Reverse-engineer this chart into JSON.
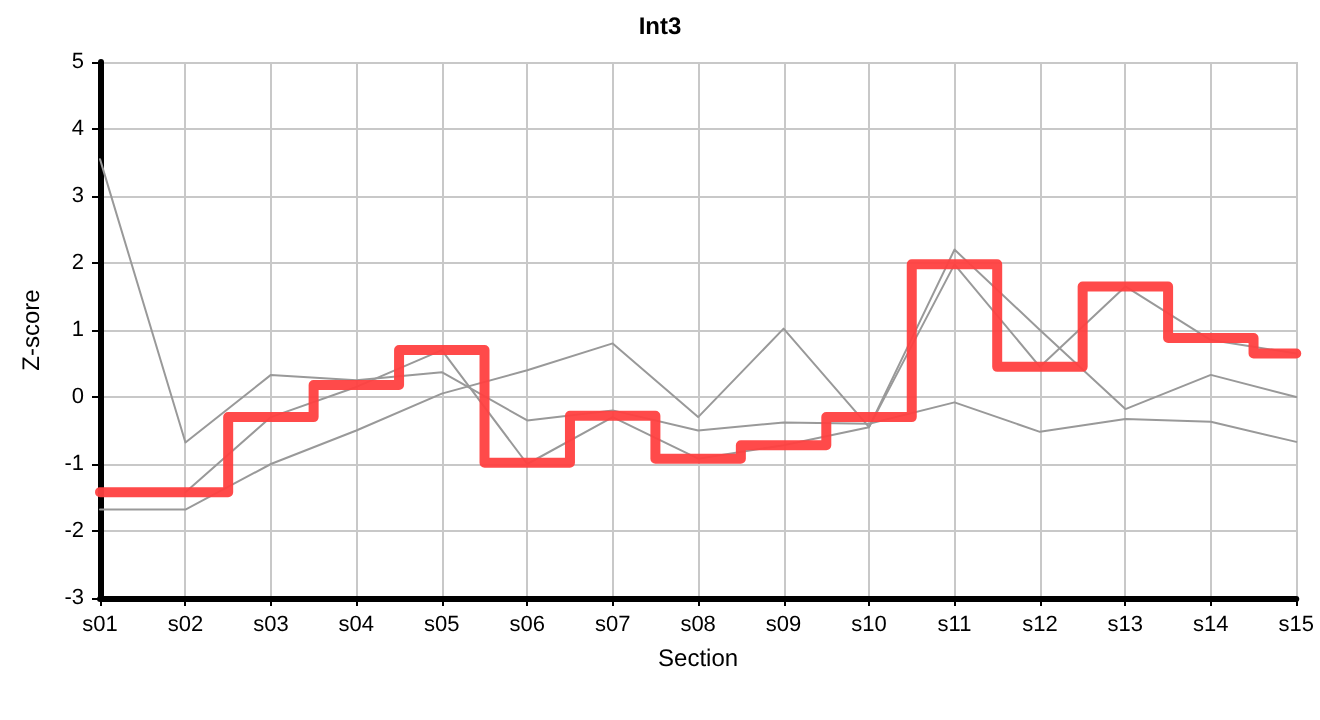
{
  "chart_data": {
    "type": "line",
    "title": "Int3",
    "xlabel": "Section",
    "ylabel": "Z-score",
    "categories": [
      "s01",
      "s02",
      "s03",
      "s04",
      "s05",
      "s06",
      "s07",
      "s08",
      "s09",
      "s10",
      "s11",
      "s12",
      "s13",
      "s14",
      "s15"
    ],
    "series": [
      {
        "color": "#999999",
        "values": [
          3.55,
          -0.68,
          0.33,
          0.25,
          0.37,
          -0.35,
          -0.2,
          -0.5,
          -0.38,
          -0.4,
          -0.08,
          -0.52,
          -0.33,
          -0.37,
          -0.67
        ]
      },
      {
        "color": "#999999",
        "values": [
          -1.68,
          -1.68,
          -1.0,
          -0.5,
          0.05,
          0.4,
          0.8,
          -0.3,
          1.02,
          -0.45,
          2.2,
          1.0,
          -0.18,
          0.33,
          0.0
        ]
      },
      {
        "color": "#999999",
        "values": [
          null,
          -1.42,
          -0.3,
          0.15,
          0.7,
          -1.0,
          -0.3,
          -0.92,
          -0.72,
          -0.45,
          1.98,
          0.45,
          1.65,
          0.85,
          0.65
        ]
      },
      {
        "type": "step",
        "color": "#ff4040",
        "values": [
          -1.42,
          -1.42,
          -0.3,
          0.18,
          0.7,
          -0.98,
          -0.28,
          -0.92,
          -0.72,
          -0.3,
          1.98,
          0.45,
          1.65,
          0.88,
          0.65
        ]
      }
    ],
    "ylim": [
      -3,
      5
    ],
    "yticks": [
      -3,
      -2,
      -1,
      0,
      1,
      2,
      3,
      4,
      5
    ],
    "grid": true,
    "marker": "none",
    "line_style": "solid"
  }
}
